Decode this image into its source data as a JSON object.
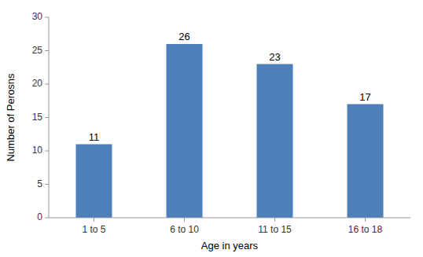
{
  "chart_data": {
    "type": "bar",
    "categories": [
      "1 to 5",
      "6 to 10",
      "11 to 15",
      "16 to 18"
    ],
    "values": [
      11,
      26,
      23,
      17
    ],
    "color": "#4f7fba",
    "xlabel": "Age in years",
    "ylabel": "Number of Perosns",
    "ylim": [
      0,
      30
    ],
    "yticks": [
      0,
      5,
      10,
      15,
      20,
      25,
      30
    ],
    "data_labels": true,
    "grid": false
  }
}
